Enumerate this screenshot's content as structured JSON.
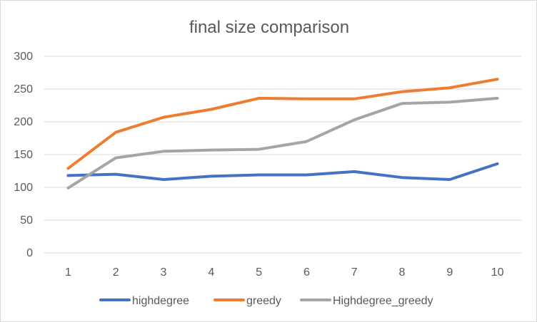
{
  "chart_data": {
    "type": "line",
    "title": "final size comparison",
    "categories": [
      "1",
      "2",
      "3",
      "4",
      "5",
      "6",
      "7",
      "8",
      "9",
      "10"
    ],
    "ylim": [
      0,
      300
    ],
    "yticks": [
      "0",
      "50",
      "100",
      "150",
      "200",
      "250",
      "300"
    ],
    "grid": true,
    "legend_position": "bottom",
    "series": [
      {
        "name": "highdegree",
        "color": "#4472c4",
        "values": [
          118,
          120,
          112,
          117,
          119,
          119,
          124,
          115,
          112,
          136
        ]
      },
      {
        "name": "greedy",
        "color": "#ed7d31",
        "values": [
          129,
          184,
          207,
          219,
          236,
          235,
          235,
          246,
          252,
          265
        ]
      },
      {
        "name": "Highdegree_greedy",
        "color": "#a5a5a5",
        "values": [
          99,
          145,
          155,
          157,
          158,
          170,
          203,
          228,
          230,
          236
        ]
      }
    ]
  }
}
